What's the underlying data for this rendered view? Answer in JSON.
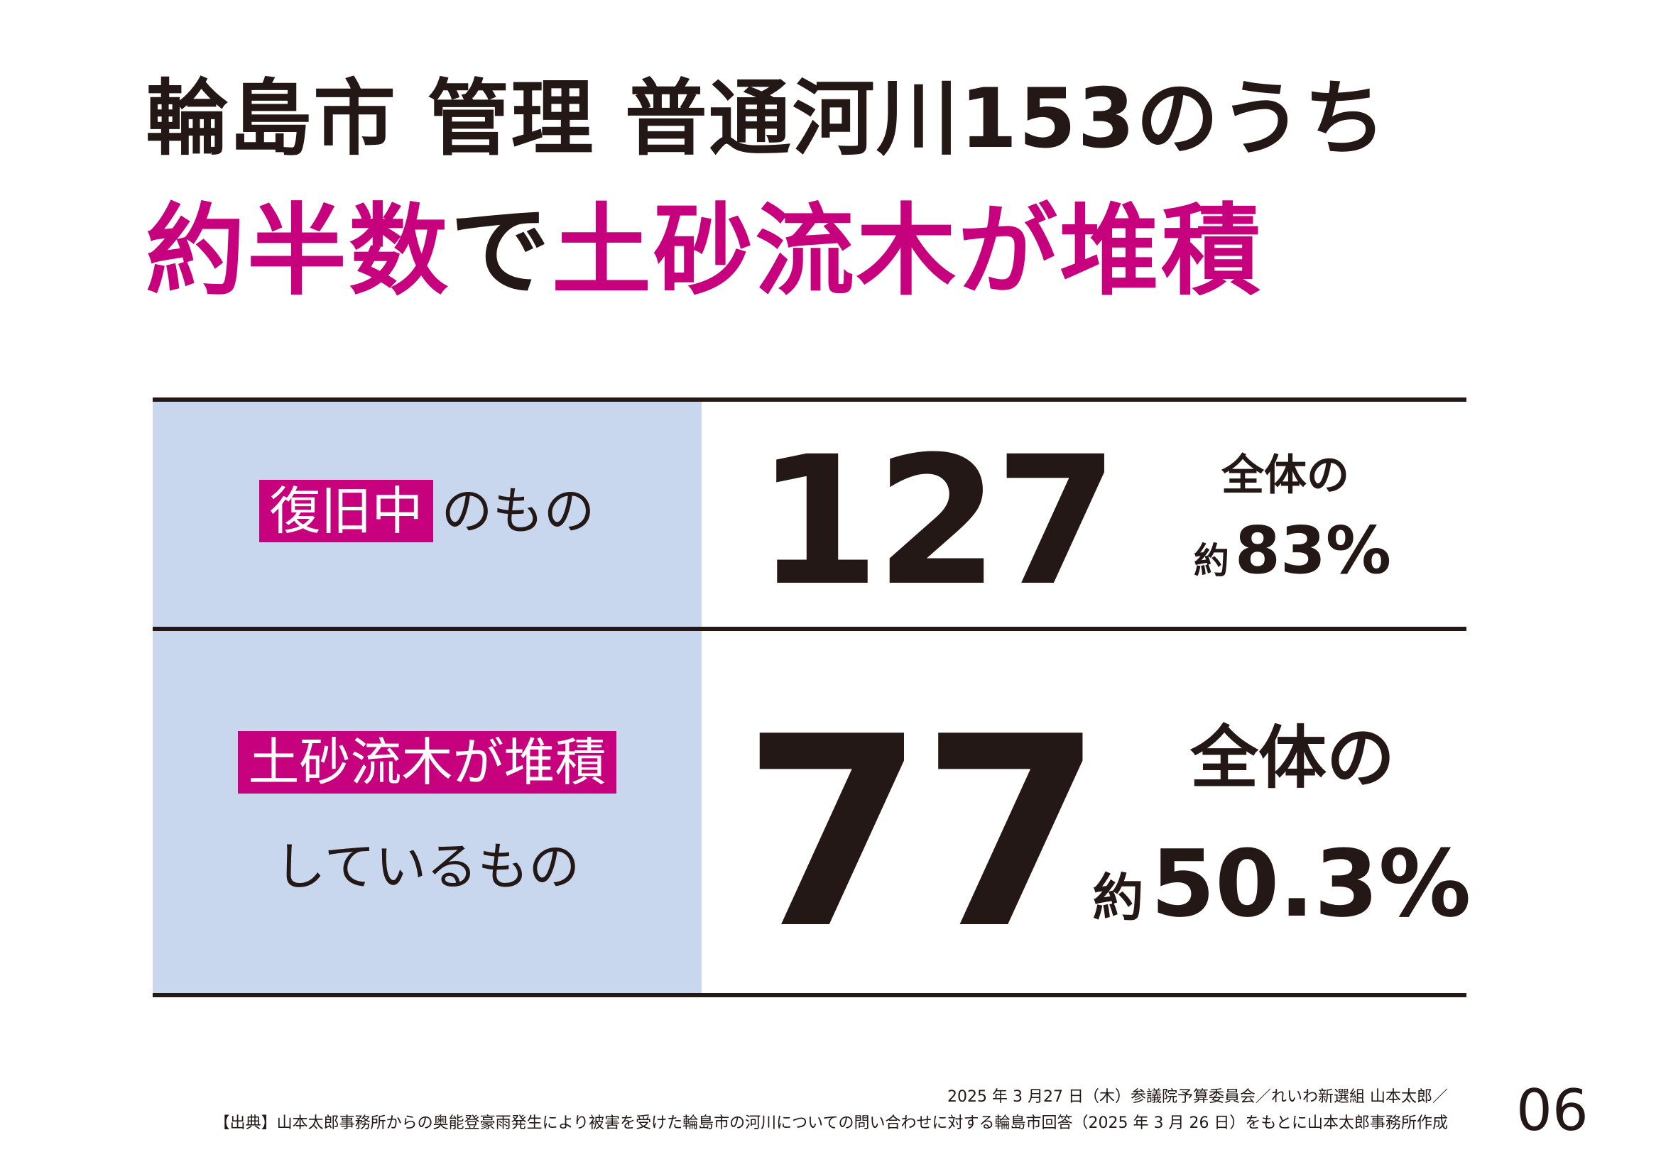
{
  "title": {
    "line1": "輪島市 管理 普通河川153のうち",
    "line2_part1": "約半数",
    "line2_part2": "で",
    "line2_part3": "土砂流木が堆積"
  },
  "rows": [
    {
      "tag": "復旧中",
      "label_rest": "のもの",
      "count": "127",
      "ratio_prefix": "全体の",
      "ratio_about": "約",
      "ratio_value": "83%"
    },
    {
      "tag": "土砂流木が堆積",
      "label_rest": "しているもの",
      "count": "77",
      "ratio_prefix": "全体の",
      "ratio_about": "約",
      "ratio_value": "50.3%"
    }
  ],
  "footer": {
    "line1": "2025 年 3 月27 日（木）参議院予算委員会／れいわ新選組 山本太郎／",
    "line2": "【出典】山本太郎事務所からの奥能登豪雨発生により被害を受けた輪島市の河川についての問い合わせに対する輪島市回答（2025 年 3 月 26 日）をもとに山本太郎事務所作成"
  },
  "page_number": "06",
  "colors": {
    "accent": "#c7007d",
    "text": "#231815",
    "panel": "#c8d6ee"
  }
}
